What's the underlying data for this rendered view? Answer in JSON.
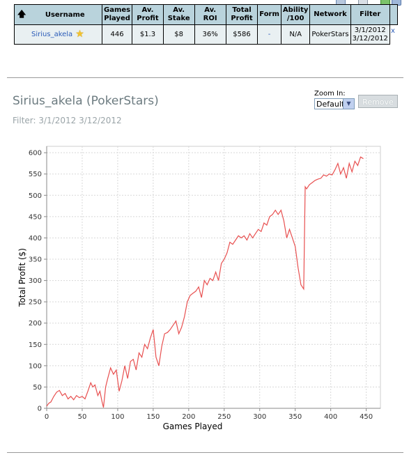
{
  "stats_table": {
    "headers": [
      "Username",
      "Games Played",
      "Av. Profit",
      "Av. Stake",
      "Av. ROI",
      "Total Profit",
      "Form",
      "Ability /100",
      "Network",
      "Filter"
    ],
    "header_lines": [
      [
        "Username"
      ],
      [
        "Games",
        "Played"
      ],
      [
        "Av.",
        "Profit"
      ],
      [
        "Av.",
        "Stake"
      ],
      [
        "Av. ROI"
      ],
      [
        "Total",
        "Profit"
      ],
      [
        "Form"
      ],
      [
        "Ability",
        "/100"
      ],
      [
        "Network"
      ],
      [
        "Filter"
      ]
    ],
    "row": {
      "username": "Sirius_akela",
      "games_played": "446",
      "av_profit": "$1.3",
      "av_stake": "$8",
      "av_roi": "36%",
      "total_profit": "$586",
      "form": "-",
      "ability": "N/A",
      "network": "PokerStars",
      "filter_line1": "3/1/2012",
      "filter_line2": "3/12/2012"
    },
    "remove_link": "x"
  },
  "player_section": {
    "title": "Sirius_akela (PokerStars)",
    "filter_text": "Filter: 3/1/2012 3/12/2012",
    "zoom_label": "Zoom In:",
    "zoom_value": "Default",
    "remove_button": "Remove"
  },
  "colors": {
    "line": "#e85050",
    "header_bg": "#b9d3dc",
    "row_bg": "#e9f0f2",
    "link": "#2a5bb8"
  },
  "chart_data": {
    "type": "line",
    "xlabel": "Games Played",
    "ylabel": "Total Profit ($)",
    "xlim": [
      0,
      470
    ],
    "ylim": [
      0,
      615
    ],
    "xticks": [
      0,
      50,
      100,
      150,
      200,
      250,
      300,
      350,
      400,
      450
    ],
    "yticks": [
      0,
      50,
      100,
      150,
      200,
      250,
      300,
      350,
      400,
      450,
      500,
      550,
      600
    ],
    "grid": true,
    "series": [
      {
        "x": [
          0,
          3,
          6,
          10,
          14,
          18,
          22,
          26,
          30,
          34,
          38,
          42,
          46,
          50,
          54,
          58,
          62,
          65,
          68,
          72,
          75,
          78,
          80,
          83,
          86,
          90,
          94,
          98,
          102,
          106,
          110,
          114,
          118,
          122,
          126,
          130,
          134,
          138,
          142,
          146,
          150,
          154,
          158,
          162,
          166,
          170,
          174,
          178,
          182,
          186,
          190,
          194,
          198,
          202,
          206,
          210,
          214,
          218,
          222,
          226,
          230,
          234,
          238,
          242,
          246,
          250,
          254,
          258,
          262,
          266,
          270,
          274,
          278,
          282,
          286,
          290,
          294,
          298,
          302,
          306,
          310,
          314,
          318,
          322,
          326,
          330,
          334,
          338,
          342,
          346,
          350,
          354,
          358,
          362,
          364,
          366,
          370,
          374,
          378,
          382,
          386,
          390,
          394,
          398,
          402,
          406,
          410,
          414,
          418,
          422,
          426,
          430,
          434,
          438,
          442,
          446
        ],
        "y": [
          5,
          12,
          15,
          28,
          38,
          42,
          30,
          35,
          22,
          28,
          20,
          30,
          25,
          28,
          22,
          40,
          60,
          50,
          55,
          30,
          40,
          15,
          2,
          50,
          70,
          95,
          80,
          90,
          40,
          65,
          100,
          70,
          110,
          115,
          90,
          130,
          120,
          150,
          140,
          165,
          185,
          120,
          100,
          145,
          175,
          178,
          185,
          195,
          205,
          175,
          190,
          215,
          250,
          265,
          270,
          275,
          285,
          260,
          300,
          290,
          305,
          300,
          320,
          300,
          340,
          350,
          365,
          390,
          385,
          395,
          405,
          400,
          405,
          395,
          410,
          400,
          410,
          420,
          415,
          435,
          430,
          450,
          455,
          465,
          455,
          465,
          440,
          400,
          420,
          400,
          380,
          330,
          290,
          280,
          520,
          515,
          525,
          530,
          535,
          538,
          540,
          548,
          545,
          550,
          548,
          560,
          575,
          550,
          565,
          540,
          575,
          555,
          580,
          570,
          590,
          586
        ]
      }
    ]
  }
}
